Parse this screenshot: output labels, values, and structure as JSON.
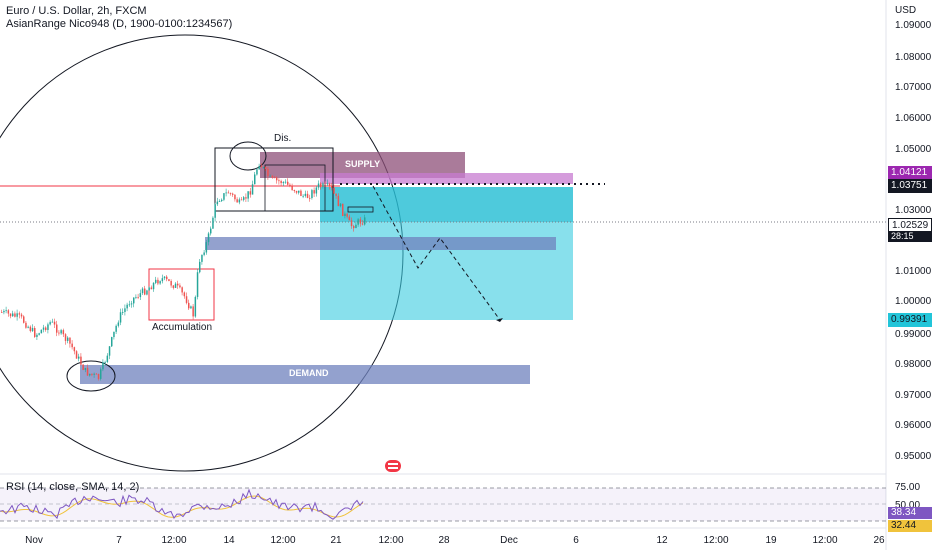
{
  "legend": {
    "symbol_line": "Euro / U.S. Dollar, 2h, FXCM",
    "indicator_line": "AsianRange Nico948 (D, 1900-0100:1234567)",
    "rsi_line": "RSI (14, close, SMA, 14, 2)"
  },
  "price_axis": {
    "currency": "USD",
    "labels": [
      "1.09000",
      "1.08000",
      "1.07000",
      "1.06000",
      "1.05000",
      "1.03000",
      "1.01000",
      "1.00000",
      "0.99000",
      "0.98000",
      "0.97000",
      "0.96000",
      "0.95000"
    ]
  },
  "price_tags": {
    "supply_top": "1.04121",
    "line_price": "1.03751",
    "current_price": "1.02529",
    "countdown": "28:15",
    "target_price": "0.99391"
  },
  "rsi_axis": {
    "labels": [
      "75.00",
      "50.00"
    ],
    "value": "38.34",
    "sma_value": "32.44"
  },
  "time_axis": [
    "Nov",
    "7",
    "12:00",
    "14",
    "12:00",
    "21",
    "12:00",
    "28",
    "Dec",
    "6",
    "12",
    "12:00",
    "19",
    "12:00",
    "26"
  ],
  "annotations": {
    "supply": "SUPPLY",
    "demand": "DEMAND",
    "accumulation": "Accumulation",
    "distribution": "Dis."
  },
  "colors": {
    "up_candle": "#26a69a",
    "down_candle": "#ef5350",
    "supply_zone": "#8e4f78",
    "demand_zone": "#6f82bd",
    "position_zone": "#38cbe0",
    "rsi_line": "#7e57c2",
    "rsi_sma": "#f0c33c",
    "horizontal_line": "#f23645"
  }
}
